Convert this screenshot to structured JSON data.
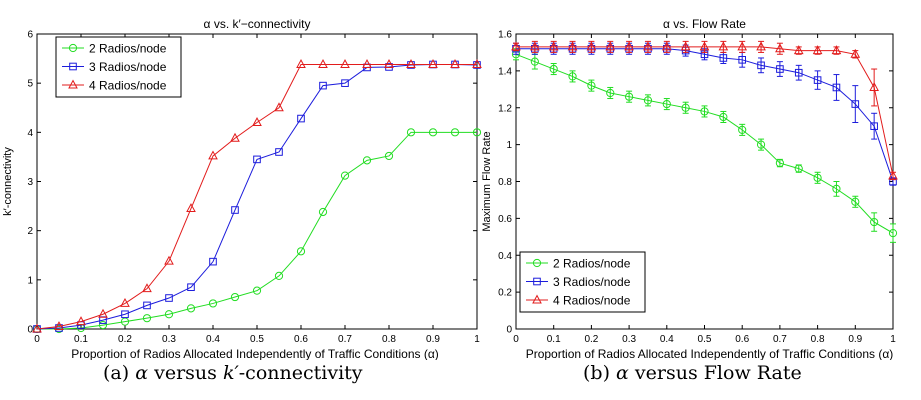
{
  "figure": {
    "captions": [
      {
        "prefix": "(a) ",
        "symbol1": "α",
        "mid": " versus ",
        "symbol2": "k′",
        "rest": "-connectivity"
      },
      {
        "prefix": "(b) ",
        "symbol1": "α",
        "mid": " versus Flow Rate",
        "symbol2": "",
        "rest": ""
      }
    ]
  },
  "colors": {
    "series_2": "#22dd22",
    "series_3": "#1c1cdc",
    "series_4": "#e21c1c",
    "axis": "#000000"
  },
  "chart_data": [
    {
      "type": "line",
      "title": "α vs. k′−connectivity",
      "xlabel": "Proportion of Radios Allocated Independently of Traffic Conditions (α)",
      "ylabel": "k′-connectivity",
      "xlim": [
        0,
        1
      ],
      "ylim": [
        0,
        6
      ],
      "xticks": [
        0,
        0.1,
        0.2,
        0.3,
        0.4,
        0.5,
        0.6,
        0.7,
        0.8,
        0.9,
        1
      ],
      "xtick_labels": [
        "0",
        "0.1",
        "0.2",
        "0.3",
        "0.4",
        "0.5",
        "0.6",
        "0.7",
        "0.8",
        "0.9",
        "1"
      ],
      "yticks": [
        0,
        1,
        2,
        3,
        4,
        5,
        6
      ],
      "ytick_labels": [
        "0",
        "1",
        "2",
        "3",
        "4",
        "5",
        "6"
      ],
      "grid": false,
      "legend_position": "top-left",
      "x": [
        0,
        0.05,
        0.1,
        0.15,
        0.2,
        0.25,
        0.3,
        0.35,
        0.4,
        0.45,
        0.5,
        0.55,
        0.6,
        0.65,
        0.7,
        0.75,
        0.8,
        0.85,
        0.9,
        0.95,
        1
      ],
      "series": [
        {
          "name": "2 Radios/node",
          "color": "#22dd22",
          "marker": "circle",
          "values": [
            0,
            0,
            0.02,
            0.08,
            0.15,
            0.22,
            0.3,
            0.42,
            0.52,
            0.65,
            0.78,
            1.08,
            1.58,
            2.38,
            3.12,
            3.43,
            3.52,
            4.0,
            4.0,
            4.0,
            4.0
          ]
        },
        {
          "name": "3 Radios/node",
          "color": "#1c1cdc",
          "marker": "square",
          "values": [
            0,
            0.02,
            0.08,
            0.18,
            0.3,
            0.48,
            0.63,
            0.85,
            1.37,
            2.42,
            3.45,
            3.6,
            4.28,
            4.95,
            5.0,
            5.32,
            5.33,
            5.37,
            5.38,
            5.38,
            5.37
          ]
        },
        {
          "name": "4 Radios/node",
          "color": "#e21c1c",
          "marker": "triangle",
          "values": [
            0,
            0.05,
            0.15,
            0.3,
            0.52,
            0.82,
            1.38,
            2.45,
            3.52,
            3.88,
            4.2,
            4.5,
            5.38,
            5.38,
            5.38,
            5.38,
            5.38,
            5.38,
            5.38,
            5.38,
            5.38
          ]
        }
      ]
    },
    {
      "type": "line",
      "title": "α vs. Flow Rate",
      "xlabel": "Proportion of Radios Allocated Independently of Traffic Conditions (α)",
      "ylabel": "Maximum Flow Rate",
      "xlim": [
        0,
        1
      ],
      "ylim": [
        0,
        1.6
      ],
      "xticks": [
        0,
        0.1,
        0.2,
        0.3,
        0.4,
        0.5,
        0.6,
        0.7,
        0.8,
        0.9,
        1
      ],
      "xtick_labels": [
        "0",
        "0.1",
        "0.2",
        "0.3",
        "0.4",
        "0.5",
        "0.6",
        "0.7",
        "0.8",
        "0.9",
        "1"
      ],
      "yticks": [
        0,
        0.2,
        0.4,
        0.6,
        0.8,
        1,
        1.2,
        1.4,
        1.6
      ],
      "ytick_labels": [
        "0",
        "0.2",
        "0.4",
        "0.6",
        "0.8",
        "1",
        "1.2",
        "1.4",
        "1.6"
      ],
      "grid": false,
      "legend_position": "bottom-left",
      "error_bars": true,
      "x": [
        0,
        0.05,
        0.1,
        0.15,
        0.2,
        0.25,
        0.3,
        0.35,
        0.4,
        0.45,
        0.5,
        0.55,
        0.6,
        0.65,
        0.7,
        0.75,
        0.8,
        0.85,
        0.9,
        0.95,
        1
      ],
      "series": [
        {
          "name": "2 Radios/node",
          "color": "#22dd22",
          "marker": "circle",
          "values": [
            1.49,
            1.45,
            1.41,
            1.37,
            1.32,
            1.28,
            1.26,
            1.24,
            1.22,
            1.2,
            1.18,
            1.15,
            1.08,
            1.0,
            0.9,
            0.87,
            0.82,
            0.76,
            0.69,
            0.58,
            0.52
          ],
          "errors": [
            0.03,
            0.04,
            0.03,
            0.03,
            0.03,
            0.03,
            0.03,
            0.03,
            0.03,
            0.03,
            0.03,
            0.03,
            0.03,
            0.03,
            0.02,
            0.02,
            0.03,
            0.04,
            0.03,
            0.05,
            0.05
          ]
        },
        {
          "name": "3 Radios/node",
          "color": "#1c1cdc",
          "marker": "square",
          "values": [
            1.52,
            1.52,
            1.52,
            1.52,
            1.52,
            1.52,
            1.52,
            1.52,
            1.52,
            1.51,
            1.49,
            1.47,
            1.46,
            1.43,
            1.41,
            1.39,
            1.35,
            1.31,
            1.22,
            1.1,
            0.8
          ],
          "errors": [
            0.03,
            0.03,
            0.03,
            0.03,
            0.03,
            0.03,
            0.03,
            0.03,
            0.03,
            0.03,
            0.03,
            0.03,
            0.04,
            0.04,
            0.04,
            0.04,
            0.05,
            0.07,
            0.1,
            0.07,
            0.02
          ]
        },
        {
          "name": "4 Radios/node",
          "color": "#e21c1c",
          "marker": "triangle",
          "values": [
            1.53,
            1.53,
            1.53,
            1.53,
            1.53,
            1.53,
            1.53,
            1.53,
            1.53,
            1.53,
            1.53,
            1.53,
            1.53,
            1.53,
            1.52,
            1.51,
            1.51,
            1.51,
            1.49,
            1.31,
            0.83
          ],
          "errors": [
            0.02,
            0.03,
            0.03,
            0.03,
            0.03,
            0.03,
            0.03,
            0.03,
            0.03,
            0.03,
            0.03,
            0.03,
            0.03,
            0.03,
            0.03,
            0.02,
            0.02,
            0.02,
            0.02,
            0.1,
            0.02
          ]
        }
      ]
    }
  ]
}
